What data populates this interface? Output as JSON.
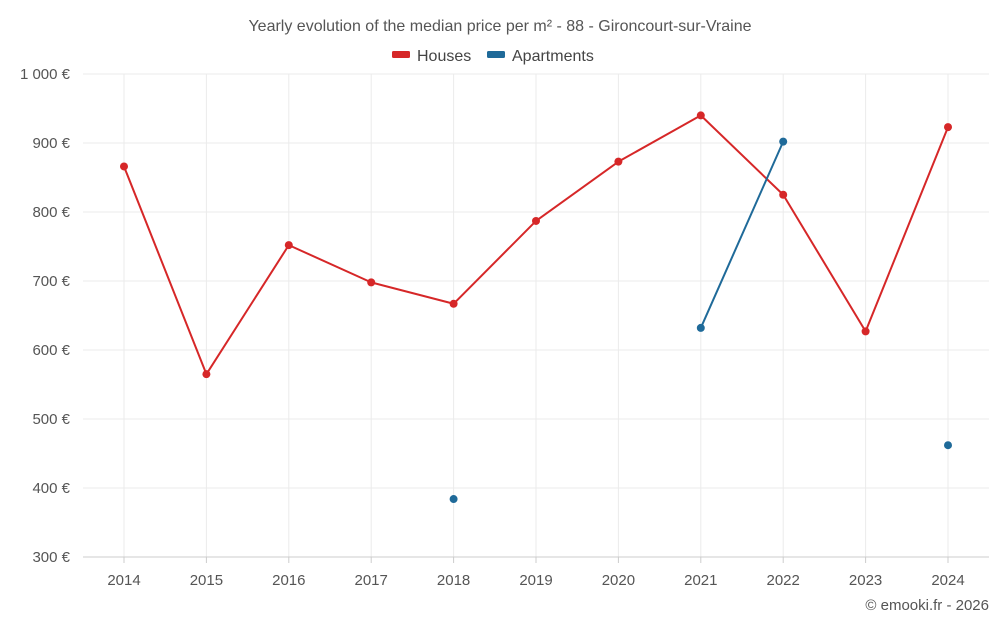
{
  "chart_data": {
    "type": "line",
    "title": "Yearly evolution of the median price per m² - 88 - Gironcourt-sur-Vraine",
    "categories": [
      "2014",
      "2015",
      "2016",
      "2017",
      "2018",
      "2019",
      "2020",
      "2021",
      "2022",
      "2023",
      "2024"
    ],
    "ylim": [
      300,
      1000
    ],
    "yticks": [
      300,
      400,
      500,
      600,
      700,
      800,
      900,
      1000
    ],
    "ytick_labels": [
      "300 €",
      "400 €",
      "500 €",
      "600 €",
      "700 €",
      "800 €",
      "900 €",
      "1 000 €"
    ],
    "grid": true,
    "legend_position": "top-center",
    "series": [
      {
        "name": "Houses",
        "color": "#d62728",
        "values": [
          866,
          565,
          752,
          698,
          667,
          787,
          873,
          940,
          825,
          627,
          923
        ]
      },
      {
        "name": "Apartments",
        "color": "#1f6a99",
        "values": [
          null,
          null,
          null,
          null,
          384,
          null,
          null,
          632,
          902,
          null,
          462
        ]
      }
    ]
  },
  "credit": "© emooki.fr - 2026"
}
